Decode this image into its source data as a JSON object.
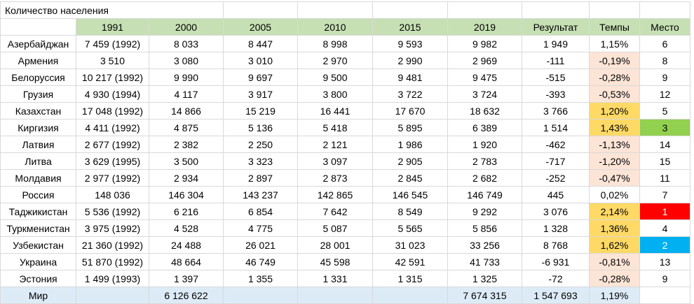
{
  "title": "Количество населения",
  "headers": [
    "1991",
    "2000",
    "2005",
    "2010",
    "2015",
    "2019",
    "Результат",
    "Темпы",
    "Место"
  ],
  "rows": [
    {
      "name": "Азербайджан",
      "v1991": "7 459 (1992)",
      "v2000": "8 033",
      "v2005": "8 447",
      "v2010": "8 998",
      "v2015": "9 593",
      "v2019": "9 982",
      "result": "1 949",
      "rate": "1,15%",
      "place": "6",
      "rate_color": "none",
      "place_color": "none"
    },
    {
      "name": "Армения",
      "v1991": "3 510",
      "v2000": "3 080",
      "v2005": "3 010",
      "v2010": "2 970",
      "v2015": "2 990",
      "v2019": "2 969",
      "result": "-111",
      "rate": "-0,19%",
      "place": "8",
      "rate_color": "peach",
      "place_color": "none"
    },
    {
      "name": "Белоруссия",
      "v1991": "10 217 (1992)",
      "v2000": "9 990",
      "v2005": "9 697",
      "v2010": "9 500",
      "v2015": "9 481",
      "v2019": "9 475",
      "result": "-515",
      "rate": "-0,28%",
      "place": "9",
      "rate_color": "peach",
      "place_color": "none"
    },
    {
      "name": "Грузия",
      "v1991": "4 930 (1994)",
      "v2000": "4 117",
      "v2005": "3 917",
      "v2010": "3 800",
      "v2015": "3 722",
      "v2019": "3 724",
      "result": "-393",
      "rate": "-0,53%",
      "place": "12",
      "rate_color": "peach",
      "place_color": "none"
    },
    {
      "name": "Казахстан",
      "v1991": "17 048 (1992)",
      "v2000": "14 866",
      "v2005": "15 219",
      "v2010": "16 441",
      "v2015": "17 670",
      "v2019": "18 632",
      "result": "3 766",
      "rate": "1,20%",
      "place": "5",
      "rate_color": "gold",
      "place_color": "none"
    },
    {
      "name": "Киргизия",
      "v1991": "4 411 (1992)",
      "v2000": "4 875",
      "v2005": "5 136",
      "v2010": "5 418",
      "v2015": "5 895",
      "v2019": "6 389",
      "result": "1 514",
      "rate": "1,43%",
      "place": "3",
      "rate_color": "gold",
      "place_color": "green"
    },
    {
      "name": "Латвия",
      "v1991": "2 677 (1992)",
      "v2000": "2 382",
      "v2005": "2 250",
      "v2010": "2 121",
      "v2015": "1 986",
      "v2019": "1 920",
      "result": "-462",
      "rate": "-1,13%",
      "place": "14",
      "rate_color": "peach",
      "place_color": "none"
    },
    {
      "name": "Литва",
      "v1991": "3 629 (1995)",
      "v2000": "3 500",
      "v2005": "3 323",
      "v2010": "3 097",
      "v2015": "2 905",
      "v2019": "2 783",
      "result": "-717",
      "rate": "-1,20%",
      "place": "15",
      "rate_color": "peach",
      "place_color": "none"
    },
    {
      "name": "Молдавия",
      "v1991": "2 977 (1992)",
      "v2000": "2 934",
      "v2005": "2 897",
      "v2010": "2 873",
      "v2015": "2 845",
      "v2019": "2 682",
      "result": "-252",
      "rate": "-0,47%",
      "place": "11",
      "rate_color": "peach",
      "place_color": "none"
    },
    {
      "name": "Россия",
      "v1991": "148 036",
      "v2000": "146 304",
      "v2005": "143 237",
      "v2010": "142 865",
      "v2015": "146 545",
      "v2019": "146 749",
      "result": "445",
      "rate": "0,02%",
      "place": "7",
      "rate_color": "none",
      "place_color": "none"
    },
    {
      "name": "Таджикистан",
      "v1991": "5 536 (1992)",
      "v2000": "6 216",
      "v2005": "6 854",
      "v2010": "7 642",
      "v2015": "8 549",
      "v2019": "9 292",
      "result": "3 076",
      "rate": "2,14%",
      "place": "1",
      "rate_color": "gold",
      "place_color": "red"
    },
    {
      "name": "Туркменистан",
      "v1991": "3 975 (1992)",
      "v2000": "4 528",
      "v2005": "4 775",
      "v2010": "5 087",
      "v2015": "5 565",
      "v2019": "5 856",
      "result": "1 328",
      "rate": "1,36%",
      "place": "4",
      "rate_color": "gold",
      "place_color": "none"
    },
    {
      "name": "Узбекистан",
      "v1991": "21 360 (1992)",
      "v2000": "24 488",
      "v2005": "26 021",
      "v2010": "28 001",
      "v2015": "31 023",
      "v2019": "33 256",
      "result": "8 768",
      "rate": "1,62%",
      "place": "2",
      "rate_color": "gold",
      "place_color": "blue"
    },
    {
      "name": "Украина",
      "v1991": "51 870 (1992)",
      "v2000": "48 664",
      "v2005": "46 749",
      "v2010": "45 598",
      "v2015": "42 591",
      "v2019": "41 733",
      "result": "-6 931",
      "rate": "-0,81%",
      "place": "13",
      "rate_color": "peach",
      "place_color": "none"
    },
    {
      "name": "Эстония",
      "v1991": "1 499 (1993)",
      "v2000": "1 397",
      "v2005": "1 355",
      "v2010": "1 331",
      "v2015": "1 315",
      "v2019": "1 325",
      "result": "-72",
      "rate": "-0,28%",
      "place": "9",
      "rate_color": "peach",
      "place_color": "none"
    }
  ],
  "world": {
    "name": "Мир",
    "v2000": "6 126 622",
    "v2019": "7 674 315",
    "result": "1 547 693",
    "rate": "1,19%"
  }
}
